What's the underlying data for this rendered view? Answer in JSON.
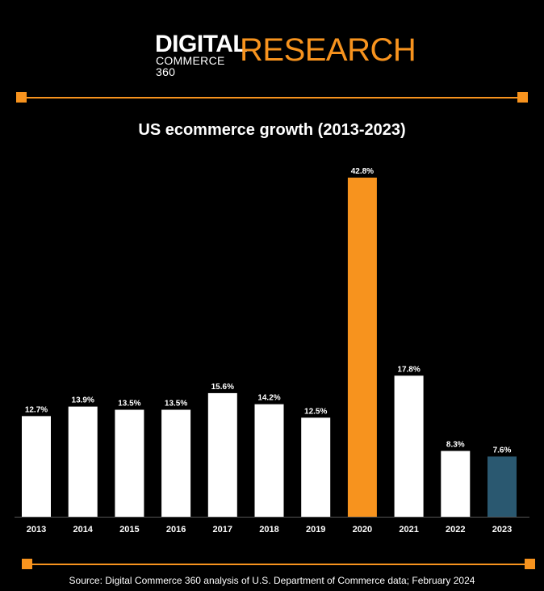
{
  "logo": {
    "digital": "DIGITAL",
    "commerce": "COMMERCE 360",
    "research": "RESEARCH"
  },
  "colors": {
    "background": "#000000",
    "accent": "#f7931e",
    "bar_default": "#ffffff",
    "bar_2023": "#2a5870"
  },
  "source": "Source: Digital Commerce 360 analysis of U.S. Department of Commerce data; February 2024",
  "chart_data": {
    "type": "bar",
    "title": "US ecommerce growth  (2013-2023)",
    "xlabel": "",
    "ylabel": "",
    "ylim": [
      0,
      45
    ],
    "grid": false,
    "categories": [
      "2013",
      "2014",
      "2015",
      "2016",
      "2017",
      "2018",
      "2019",
      "2020",
      "2021",
      "2022",
      "2023"
    ],
    "values": [
      12.7,
      13.9,
      13.5,
      13.5,
      15.6,
      14.2,
      12.5,
      42.8,
      17.8,
      8.3,
      7.6
    ],
    "labels": [
      "12.7%",
      "13.9%",
      "13.5%",
      "13.5%",
      "15.6%",
      "14.2%",
      "12.5%",
      "42.8%",
      "17.8%",
      "8.3%",
      "7.6%"
    ],
    "bar_colors": [
      "#ffffff",
      "#ffffff",
      "#ffffff",
      "#ffffff",
      "#ffffff",
      "#ffffff",
      "#ffffff",
      "#f7931e",
      "#ffffff",
      "#ffffff",
      "#2a5870"
    ]
  }
}
